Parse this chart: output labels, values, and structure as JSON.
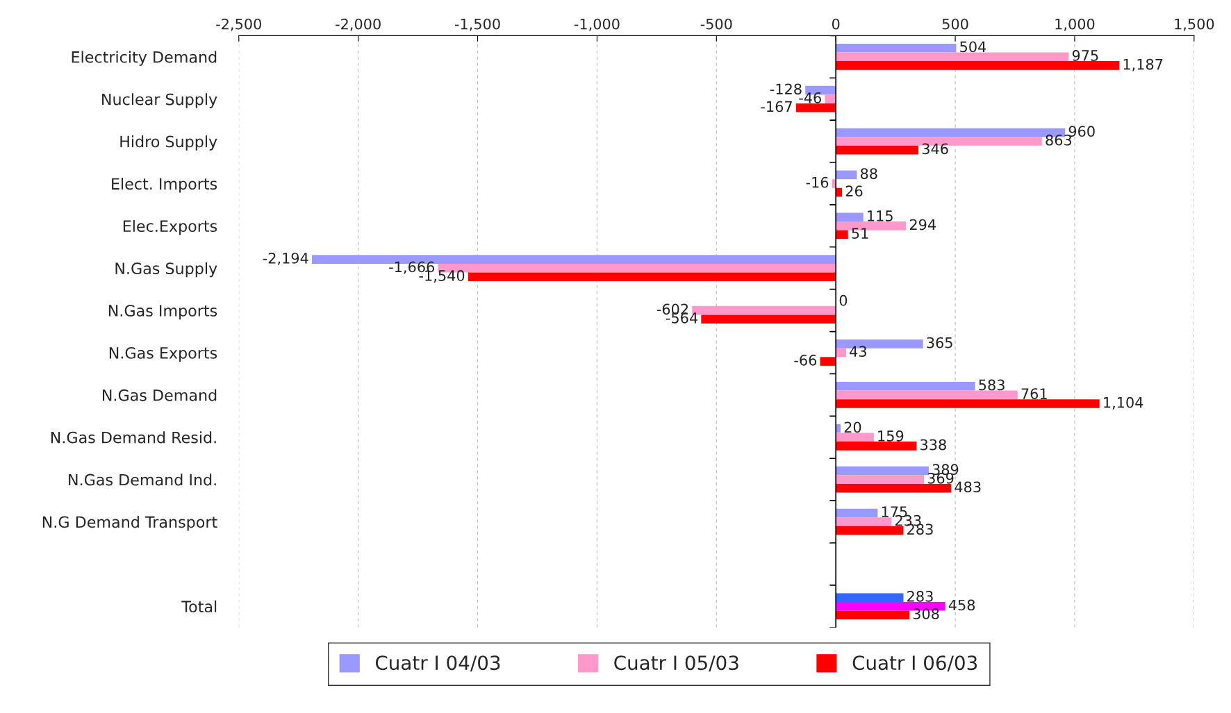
{
  "chart_data": {
    "type": "bar",
    "orientation": "horizontal",
    "categories": [
      "Electricity Demand",
      "Nuclear Supply",
      "Hidro Supply",
      "Elect. Imports",
      "Elec.Exports",
      "N.Gas Supply",
      "N.Gas Imports",
      "N.Gas Exports",
      "N.Gas Demand",
      "N.Gas Demand Resid.",
      "N.Gas Demand Ind.",
      "N.G Demand Transport",
      null,
      "Total"
    ],
    "series": [
      {
        "name": "Cuatr I 04/03",
        "color": "#9999ff",
        "colors": [
          "#9999ff",
          "#9999ff",
          "#9999ff",
          "#9999ff",
          "#9999ff",
          "#9999ff",
          "#9999ff",
          "#9999ff",
          "#9999ff",
          "#9999ff",
          "#9999ff",
          "#9999ff",
          "#9999ff",
          "#3366ff"
        ],
        "values": [
          504,
          -128,
          960,
          88,
          115,
          -2194,
          0,
          365,
          583,
          20,
          389,
          175,
          null,
          283
        ],
        "value_labels": [
          "504",
          "-128",
          "960",
          "88",
          "115",
          "-2,194",
          "0",
          "365",
          "583",
          "20",
          "389",
          "175",
          null,
          "283"
        ]
      },
      {
        "name": "Cuatr I 05/03",
        "color": "#ff99cc",
        "colors": [
          "#ff99cc",
          "#ff99cc",
          "#ff99cc",
          "#ff99cc",
          "#ff99cc",
          "#ff99cc",
          "#ff99cc",
          "#ff99cc",
          "#ff99cc",
          "#ff99cc",
          "#ff99cc",
          "#ff99cc",
          "#ff99cc",
          "#ff00ff"
        ],
        "values": [
          975,
          -46,
          863,
          -16,
          294,
          -1666,
          -602,
          43,
          761,
          159,
          369,
          233,
          null,
          458
        ],
        "value_labels": [
          "975",
          "-46",
          "863",
          "-16",
          "294",
          "-1,666",
          "-602",
          "43",
          "761",
          "159",
          "369",
          "233",
          null,
          "458"
        ]
      },
      {
        "name": "Cuatr I 06/03",
        "color": "#ff0000",
        "colors": [
          "#ff0000",
          "#ff0000",
          "#ff0000",
          "#ff0000",
          "#ff0000",
          "#ff0000",
          "#ff0000",
          "#ff0000",
          "#ff0000",
          "#ff0000",
          "#ff0000",
          "#ff0000",
          "#ff0000",
          "#ff0000"
        ],
        "values": [
          1187,
          -167,
          346,
          26,
          51,
          -1540,
          -564,
          -66,
          1104,
          338,
          483,
          283,
          null,
          308
        ],
        "value_labels": [
          "1,187",
          "-167",
          "346",
          "26",
          "51",
          "-1,540",
          "-564",
          "-66",
          "1,104",
          "338",
          "483",
          "283",
          null,
          "308"
        ]
      }
    ],
    "xlim": [
      -2500,
      1500
    ],
    "xticks": [
      {
        "value": -2500,
        "label": "-2,500"
      },
      {
        "value": -2000,
        "label": "-2,000"
      },
      {
        "value": -1500,
        "label": "-1,500"
      },
      {
        "value": -1000,
        "label": "-1,000"
      },
      {
        "value": -500,
        "label": "-500"
      },
      0,
      500,
      {
        "value": 1000,
        "label": "1,000"
      },
      {
        "value": 1500,
        "label": "1,500"
      }
    ],
    "grid": "x",
    "legend": "bottom"
  }
}
